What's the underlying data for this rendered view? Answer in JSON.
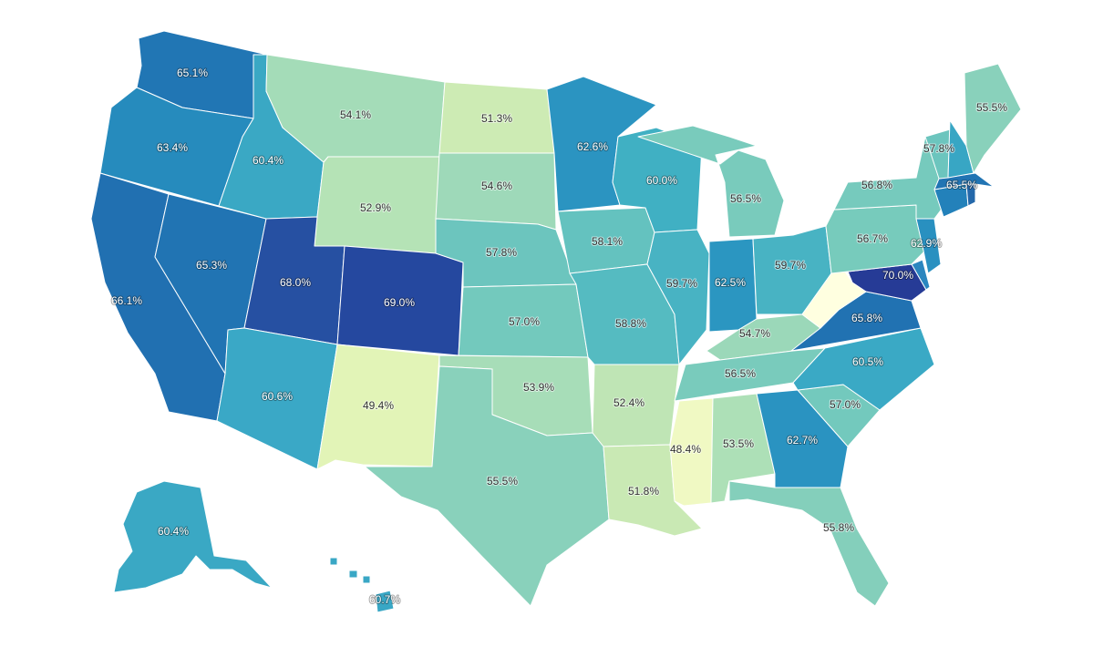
{
  "map": {
    "color_scale": [
      "#ffffd9",
      "#edf8b1",
      "#c7e9b4",
      "#7fcdbb",
      "#41b6c4",
      "#1d91c0",
      "#225ea8",
      "#253494",
      "#081d58"
    ],
    "states": [
      {
        "id": "WA",
        "value": 65.1,
        "label": "65.1%",
        "color": "#2176b4"
      },
      {
        "id": "OR",
        "value": 63.4,
        "label": "63.4%",
        "color": "#268bbd"
      },
      {
        "id": "CA",
        "value": 66.1,
        "label": "66.1%",
        "color": "#2170b1"
      },
      {
        "id": "NV",
        "value": 65.3,
        "label": "65.3%",
        "color": "#2174b3"
      },
      {
        "id": "ID",
        "value": 60.4,
        "label": "60.4%",
        "color": "#3aa8c4"
      },
      {
        "id": "MT",
        "value": 54.1,
        "label": "54.1%",
        "color": "#a4dcb8"
      },
      {
        "id": "WY",
        "value": 52.9,
        "label": "52.9%",
        "color": "#b5e3b6"
      },
      {
        "id": "UT",
        "value": 68.0,
        "label": "68.0%",
        "color": "#2650a2"
      },
      {
        "id": "CO",
        "value": 69.0,
        "label": "69.0%",
        "color": "#25489f"
      },
      {
        "id": "AZ",
        "value": 60.6,
        "label": "60.6%",
        "color": "#3aa8c6"
      },
      {
        "id": "NM",
        "value": 49.4,
        "label": "49.4%",
        "color": "#e2f4b7"
      },
      {
        "id": "ND",
        "value": 51.3,
        "label": "51.3%",
        "color": "#cdebb4"
      },
      {
        "id": "SD",
        "value": 54.6,
        "label": "54.6%",
        "color": "#9ed9b9"
      },
      {
        "id": "NE",
        "value": 57.8,
        "label": "57.8%",
        "color": "#6cc5be"
      },
      {
        "id": "KS",
        "value": 57.0,
        "label": "57.0%",
        "color": "#73c9bd"
      },
      {
        "id": "OK",
        "value": 53.9,
        "label": "53.9%",
        "color": "#a7ddb8"
      },
      {
        "id": "TX",
        "value": 55.5,
        "label": "55.5%",
        "color": "#89d1bb"
      },
      {
        "id": "MN",
        "value": 62.6,
        "label": "62.6%",
        "color": "#2b94c1"
      },
      {
        "id": "IA",
        "value": 58.1,
        "label": "58.1%",
        "color": "#64c2bf"
      },
      {
        "id": "MO",
        "value": 58.8,
        "label": "58.8%",
        "color": "#55bbc1"
      },
      {
        "id": "AR",
        "value": 52.4,
        "label": "52.4%",
        "color": "#bfe5b5"
      },
      {
        "id": "LA",
        "value": 51.8,
        "label": "51.8%",
        "color": "#c9e9b4"
      },
      {
        "id": "WI",
        "value": 60.0,
        "label": "60.0%",
        "color": "#40b0c3"
      },
      {
        "id": "IL",
        "value": 59.7,
        "label": "59.7%",
        "color": "#48b3c3"
      },
      {
        "id": "MI",
        "value": 56.5,
        "label": "56.5%",
        "color": "#79cbbc"
      },
      {
        "id": "IN",
        "value": 62.5,
        "label": "62.5%",
        "color": "#2b96c1"
      },
      {
        "id": "OH",
        "value": 59.7,
        "label": "59.7%",
        "color": "#48b3c3"
      },
      {
        "id": "KY",
        "value": 54.7,
        "label": "54.7%",
        "color": "#9bd8b9"
      },
      {
        "id": "TN",
        "value": 56.5,
        "label": "56.5%",
        "color": "#79cbbc"
      },
      {
        "id": "MS",
        "value": 48.4,
        "label": "48.4%",
        "color": "#f0f9c3"
      },
      {
        "id": "AL",
        "value": 53.5,
        "label": "53.5%",
        "color": "#ade0b7"
      },
      {
        "id": "GA",
        "value": 62.7,
        "label": "62.7%",
        "color": "#2a93c1"
      },
      {
        "id": "FL",
        "value": 55.8,
        "label": "55.8%",
        "color": "#84cfbb"
      },
      {
        "id": "SC",
        "value": 57.0,
        "label": "57.0%",
        "color": "#73c9bd"
      },
      {
        "id": "NC",
        "value": 60.5,
        "label": "60.5%",
        "color": "#3aa9c5"
      },
      {
        "id": "VA",
        "value": 65.8,
        "label": "65.8%",
        "color": "#2172b2"
      },
      {
        "id": "WV",
        "value": null,
        "label": "",
        "color": "#ffffe0"
      },
      {
        "id": "MD",
        "value": 70.0,
        "label": "70.0%",
        "color": "#263b96"
      },
      {
        "id": "DE",
        "value": null,
        "label": "",
        "color": "#2b86bf"
      },
      {
        "id": "PA",
        "value": 56.7,
        "label": "56.7%",
        "color": "#77cbbc"
      },
      {
        "id": "NJ",
        "value": 62.9,
        "label": "62.9%",
        "color": "#2990c0"
      },
      {
        "id": "NY",
        "value": 56.8,
        "label": "56.8%",
        "color": "#76cabd"
      },
      {
        "id": "CT",
        "value": null,
        "label": "",
        "color": "#2381ba"
      },
      {
        "id": "RI",
        "value": null,
        "label": "",
        "color": "#2468aa"
      },
      {
        "id": "MA",
        "value": 65.5,
        "label": "65.5%",
        "color": "#2174b3"
      },
      {
        "id": "VT",
        "value": 57.8,
        "label": "57.8%",
        "color": "#6cc5be"
      },
      {
        "id": "NH",
        "value": null,
        "label": "",
        "color": "#38a6c4"
      },
      {
        "id": "ME",
        "value": 55.5,
        "label": "55.5%",
        "color": "#89d1bb"
      },
      {
        "id": "AK",
        "value": 60.4,
        "label": "60.4%",
        "color": "#3aa8c4"
      },
      {
        "id": "HI",
        "value": 60.7,
        "label": "60.7%",
        "color": "#39a7c5"
      }
    ]
  }
}
